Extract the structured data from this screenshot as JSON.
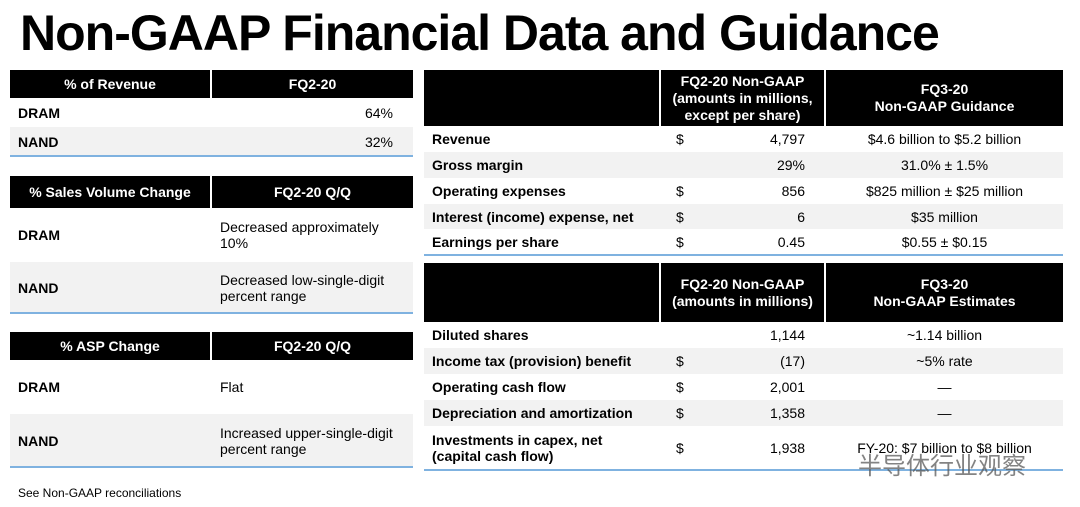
{
  "title": "Non-GAAP Financial Data and Guidance",
  "left_tables": [
    {
      "header": [
        "% of Revenue",
        "FQ2-20"
      ],
      "rows": [
        [
          "DRAM",
          "64%"
        ],
        [
          "NAND",
          "32%"
        ]
      ]
    },
    {
      "header": [
        "% Sales Volume Change",
        "FQ2-20 Q/Q"
      ],
      "rows": [
        [
          "DRAM",
          "Decreased approximately 10%"
        ],
        [
          "NAND",
          "Decreased low-single-digit percent range"
        ]
      ]
    },
    {
      "header": [
        "% ASP Change",
        "FQ2-20 Q/Q"
      ],
      "rows": [
        [
          "DRAM",
          "Flat"
        ],
        [
          "NAND",
          "Increased upper-single-digit percent range"
        ]
      ]
    }
  ],
  "right_tables": [
    {
      "header": [
        [
          "FQ2-20 Non-GAAP",
          "(amounts in millions,",
          "except per share)"
        ],
        [
          "FQ3-20",
          "Non-GAAP Guidance"
        ]
      ],
      "rows": [
        {
          "label": "Revenue",
          "currency": "$",
          "value": "4,797",
          "guidance": "$4.6 billion to $5.2 billion"
        },
        {
          "label": "Gross margin",
          "value": "29%",
          "guidance": "31.0% ± 1.5%"
        },
        {
          "label": "Operating expenses",
          "currency": "$",
          "value": "856",
          "guidance": "$825 million ± $25 million"
        },
        {
          "label": "Interest (income) expense, net",
          "currency": "$",
          "value": "6",
          "guidance": "$35 million"
        },
        {
          "label": "Earnings per share",
          "currency": "$",
          "value": "0.45",
          "guidance": "$0.55 ± $0.15"
        }
      ]
    },
    {
      "header": [
        [
          "FQ2-20 Non-GAAP",
          "(amounts in millions)"
        ],
        [
          "FQ3-20",
          "Non-GAAP Estimates"
        ]
      ],
      "rows": [
        {
          "label": "Diluted shares",
          "value": "1,144",
          "guidance": "~1.14 billion"
        },
        {
          "label": "Income tax (provision) benefit",
          "currency": "$",
          "value": "(17)",
          "guidance": "~5% rate"
        },
        {
          "label": "Operating cash flow",
          "currency": "$",
          "value": "2,001",
          "guidance": "—"
        },
        {
          "label": "Depreciation and amortization",
          "currency": "$",
          "value": "1,358",
          "guidance": "—"
        },
        {
          "label": "Investments in capex, net (capital cash flow)",
          "currency": "$",
          "value": "1,938",
          "guidance": "FY-20: $7 billion to $8 billion"
        }
      ]
    }
  ],
  "footnote": "See Non-GAAP reconciliations",
  "watermark": "半导体行业观察"
}
